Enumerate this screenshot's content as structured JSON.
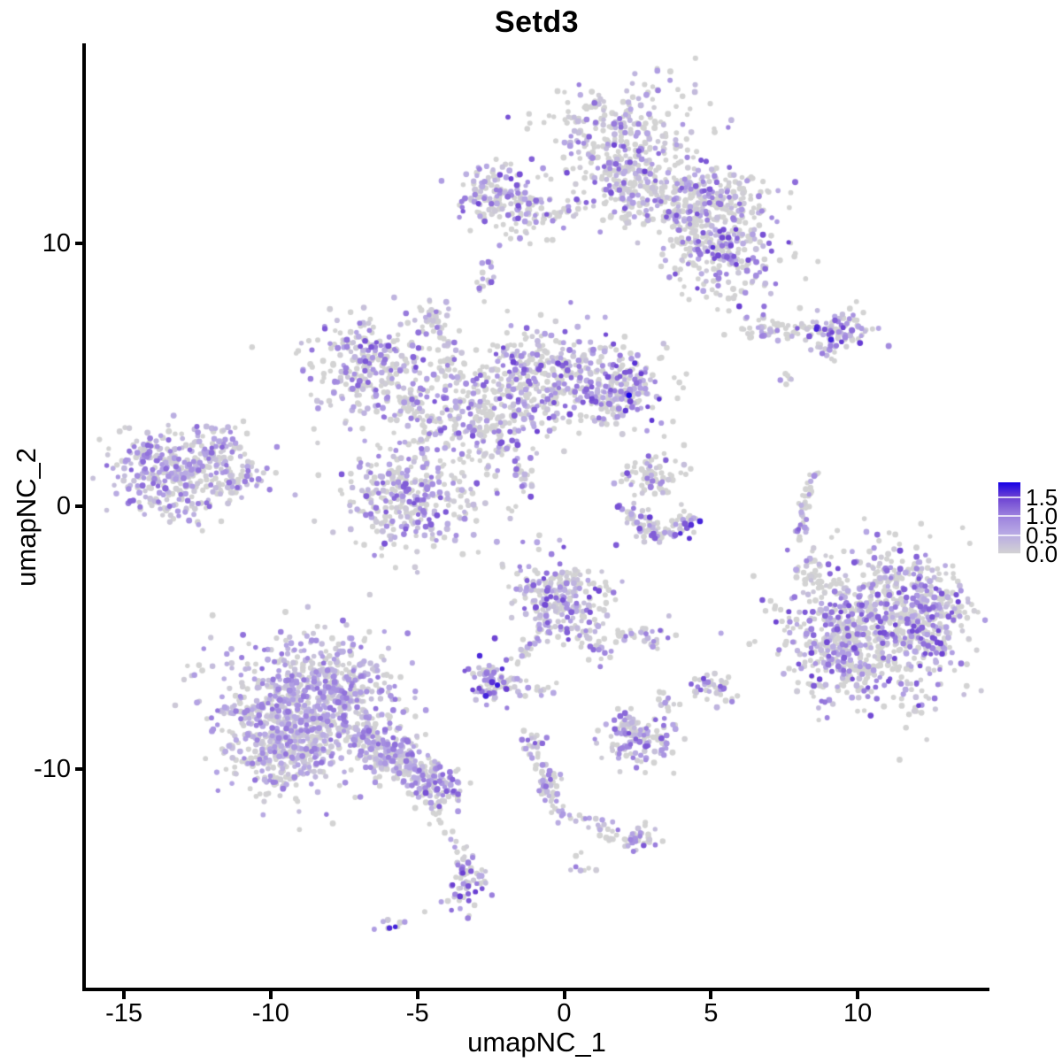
{
  "title": "Setd3",
  "axes": {
    "x": {
      "label": "umapNC_1",
      "ticks": [
        -15,
        -10,
        -5,
        0,
        5,
        10
      ]
    },
    "y": {
      "label": "umapNC_2",
      "ticks": [
        10,
        0,
        -10
      ]
    }
  },
  "legend": {
    "tick_values": [
      1.5,
      1.0,
      0.5,
      0.0
    ],
    "tick_labels": [
      "1.5",
      "1.0",
      "0.5",
      "0.0"
    ],
    "max_value": 1.9
  },
  "colors": {
    "background": "#ffffff",
    "axis": "#000000",
    "text": "#000000",
    "grey_low": "#d3d3d3",
    "blue_high": "#1500e6"
  },
  "chart_data": {
    "type": "scatter",
    "title": "Setd3",
    "xlabel": "umapNC_1",
    "ylabel": "umapNC_2",
    "xlim": [
      -16.4,
      14.5
    ],
    "ylim": [
      -18.4,
      17.7
    ],
    "grid": false,
    "legend_position": "right",
    "point_radius_px": 3.0,
    "n_points_approx": 6800,
    "colorscale": {
      "domain": [
        0,
        1.9
      ],
      "stops": [
        [
          0.0,
          "#d3d3d3"
        ],
        [
          0.3,
          "#b6a7e4"
        ],
        [
          0.55,
          "#9a7edd"
        ],
        [
          0.8,
          "#6a3fd2"
        ],
        [
          1.0,
          "#1500e6"
        ]
      ]
    },
    "clusters": [
      {
        "type": "blob",
        "x": 2.0,
        "y": 14.0,
        "sx": 1.35,
        "sy": 1.05,
        "n": 320,
        "grey": 0.45,
        "emax": 1.5
      },
      {
        "type": "blob",
        "x": 1.9,
        "y": 12.4,
        "sx": 0.55,
        "sy": 0.6,
        "n": 70,
        "grey": 0.5,
        "emax": 1.4
      },
      {
        "type": "blob",
        "x": 3.5,
        "y": 11.6,
        "sx": 1.05,
        "sy": 0.6,
        "n": 160,
        "grey": 0.5,
        "emax": 1.4
      },
      {
        "type": "blob",
        "x": 5.3,
        "y": 11.8,
        "sx": 0.9,
        "sy": 0.6,
        "n": 140,
        "grey": 0.45,
        "emax": 1.5
      },
      {
        "type": "blob",
        "x": 5.4,
        "y": 9.7,
        "sx": 0.95,
        "sy": 0.85,
        "n": 240,
        "grey": 0.4,
        "emax": 1.6
      },
      {
        "type": "blob",
        "x": 4.4,
        "y": 10.7,
        "sx": 0.45,
        "sy": 0.5,
        "n": 40,
        "grey": 0.5,
        "emax": 1.3
      },
      {
        "type": "blob",
        "x": -2.7,
        "y": 11.9,
        "sx": 0.55,
        "sy": 0.6,
        "n": 90,
        "grey": 0.4,
        "emax": 1.5
      },
      {
        "type": "blob",
        "x": -1.4,
        "y": 11.2,
        "sx": 0.65,
        "sy": 0.55,
        "n": 90,
        "grey": 0.45,
        "emax": 1.4
      },
      {
        "type": "strand",
        "x1": -0.6,
        "y1": 11.0,
        "x2": 0.3,
        "y2": 11.3,
        "w": 0.15,
        "n": 15,
        "grey": 0.6,
        "emax": 1.2
      },
      {
        "type": "blob",
        "x": -2.75,
        "y": 8.7,
        "sx": 0.2,
        "sy": 0.45,
        "n": 16,
        "grey": 0.35,
        "emax": 1.3
      },
      {
        "type": "blob",
        "x": 7.4,
        "y": 6.7,
        "sx": 0.85,
        "sy": 0.25,
        "n": 55,
        "grey": 0.6,
        "emax": 1.3
      },
      {
        "type": "blob",
        "x": 9.4,
        "y": 6.6,
        "sx": 0.6,
        "sy": 0.4,
        "n": 95,
        "grey": 0.3,
        "emax": 1.7
      },
      {
        "type": "strand",
        "x1": 8.6,
        "y1": 6.2,
        "x2": 9.2,
        "y2": 5.6,
        "w": 0.12,
        "n": 12,
        "grey": 0.5,
        "emax": 1.3
      },
      {
        "type": "blob",
        "x": 7.7,
        "y": 4.85,
        "sx": 0.22,
        "sy": 0.18,
        "n": 6,
        "grey": 0.5,
        "emax": 1.2
      },
      {
        "type": "blob",
        "x": -6.4,
        "y": 5.2,
        "sx": 1.15,
        "sy": 0.95,
        "n": 300,
        "grey": 0.42,
        "emax": 1.4
      },
      {
        "type": "blob",
        "x": -4.5,
        "y": 7.2,
        "sx": 0.3,
        "sy": 0.45,
        "n": 35,
        "grey": 0.3,
        "emax": 1.4
      },
      {
        "type": "strand",
        "x1": -4.2,
        "y1": 7.0,
        "x2": -3.8,
        "y2": 4.9,
        "w": 0.12,
        "n": 20,
        "grey": 0.4,
        "emax": 1.3
      },
      {
        "type": "blob",
        "x": -3.2,
        "y": 3.3,
        "sx": 1.05,
        "sy": 1.0,
        "n": 220,
        "grey": 0.5,
        "emax": 1.4
      },
      {
        "type": "blob",
        "x": -0.4,
        "y": 4.9,
        "sx": 1.55,
        "sy": 0.95,
        "n": 420,
        "grey": 0.45,
        "emax": 1.5
      },
      {
        "type": "blob",
        "x": 2.0,
        "y": 4.4,
        "sx": 0.65,
        "sy": 0.6,
        "n": 130,
        "grey": 0.4,
        "emax": 1.6
      },
      {
        "type": "blob",
        "x": 2.2,
        "y": 4.2,
        "sx": 0.02,
        "sy": 0.02,
        "n": 1,
        "e": 1.9
      },
      {
        "type": "blob",
        "x": -5.2,
        "y": 0.4,
        "sx": 1.2,
        "sy": 1.05,
        "n": 330,
        "grey": 0.4,
        "emax": 1.4
      },
      {
        "type": "strand",
        "x1": -2.4,
        "y1": 2.9,
        "x2": -0.9,
        "y2": 0.3,
        "w": 0.18,
        "n": 40,
        "grey": 0.45,
        "emax": 1.4
      },
      {
        "type": "strand",
        "x1": -5.6,
        "y1": 4.0,
        "x2": -4.4,
        "y2": 3.2,
        "w": 0.2,
        "n": 25,
        "grey": 0.5,
        "emax": 1.3
      },
      {
        "type": "blob",
        "x": -13.2,
        "y": 1.4,
        "sx": 1.15,
        "sy": 0.8,
        "n": 340,
        "grey": 0.25,
        "emax": 1.25
      },
      {
        "type": "blob",
        "x": -11.7,
        "y": 2.5,
        "sx": 0.4,
        "sy": 0.35,
        "n": 30,
        "grey": 0.3,
        "emax": 1.2
      },
      {
        "type": "blob",
        "x": -10.9,
        "y": 1.1,
        "sx": 0.5,
        "sy": 0.3,
        "n": 40,
        "grey": 0.35,
        "emax": 1.2
      },
      {
        "type": "blob",
        "x": -13.6,
        "y": -0.1,
        "sx": 0.5,
        "sy": 0.3,
        "n": 30,
        "grey": 0.3,
        "emax": 1.2
      },
      {
        "type": "blob",
        "x": -10.6,
        "y": 6.05,
        "sx": 0.02,
        "sy": 0.02,
        "n": 1,
        "e": 0
      },
      {
        "type": "blob",
        "x": 2.8,
        "y": 1.1,
        "sx": 0.6,
        "sy": 0.55,
        "n": 75,
        "grey": 0.55,
        "emax": 1.4
      },
      {
        "type": "strand",
        "x1": 2.1,
        "y1": -0.2,
        "x2": 3.2,
        "y2": -1.15,
        "w": 0.2,
        "n": 45,
        "grey": 0.35,
        "emax": 1.7
      },
      {
        "type": "strand",
        "x1": 3.2,
        "y1": -1.15,
        "x2": 4.5,
        "y2": -0.4,
        "w": 0.2,
        "n": 45,
        "grey": 0.35,
        "emax": 1.7
      },
      {
        "type": "strand",
        "x1": 8.0,
        "y1": -1.2,
        "x2": 8.15,
        "y2": 0.1,
        "w": 0.1,
        "n": 20,
        "grey": 0.5,
        "emax": 1.3
      },
      {
        "type": "strand",
        "x1": 8.15,
        "y1": 0.1,
        "x2": 8.6,
        "y2": 1.3,
        "w": 0.1,
        "n": 20,
        "grey": 0.5,
        "emax": 1.3
      },
      {
        "type": "blob",
        "x": 10.6,
        "y": -4.6,
        "sx": 1.6,
        "sy": 1.45,
        "n": 750,
        "grey": 0.45,
        "emax": 1.5
      },
      {
        "type": "blob",
        "x": 12.2,
        "y": -4.0,
        "sx": 0.7,
        "sy": 0.9,
        "n": 150,
        "grey": 0.45,
        "emax": 1.5
      },
      {
        "type": "blob",
        "x": 9.3,
        "y": -5.8,
        "sx": 0.7,
        "sy": 0.8,
        "n": 120,
        "grey": 0.4,
        "emax": 1.5
      },
      {
        "type": "strand",
        "x1": 8.1,
        "y1": -2.0,
        "x2": 9.0,
        "y2": -3.0,
        "w": 0.3,
        "n": 25,
        "grey": 0.75,
        "emax": 1.2
      },
      {
        "type": "blob",
        "x": -0.3,
        "y": -3.4,
        "sx": 0.8,
        "sy": 0.75,
        "n": 240,
        "grey": 0.35,
        "emax": 1.5
      },
      {
        "type": "strand",
        "x1": 0.5,
        "y1": -4.5,
        "x2": 1.4,
        "y2": -5.8,
        "w": 0.18,
        "n": 30,
        "grey": 0.5,
        "emax": 1.3
      },
      {
        "type": "strand",
        "x1": -0.9,
        "y1": -4.9,
        "x2": -1.7,
        "y2": -6.1,
        "w": 0.15,
        "n": 22,
        "grey": 0.45,
        "emax": 1.3
      },
      {
        "type": "blob",
        "x": -2.4,
        "y": -6.7,
        "sx": 0.5,
        "sy": 0.35,
        "n": 75,
        "grey": 0.15,
        "emax": 1.75
      },
      {
        "type": "blob",
        "x": -0.9,
        "y": -7.0,
        "sx": 0.3,
        "sy": 0.25,
        "n": 12,
        "grey": 0.6,
        "emax": 1.2
      },
      {
        "type": "blob",
        "x": 2.6,
        "y": -4.85,
        "sx": 0.55,
        "sy": 0.25,
        "n": 35,
        "grey": 0.45,
        "emax": 1.4
      },
      {
        "type": "blob",
        "x": 3.4,
        "y": -7.3,
        "sx": 0.22,
        "sy": 0.28,
        "n": 12,
        "grey": 0.5,
        "emax": 1.3
      },
      {
        "type": "blob",
        "x": 5.05,
        "y": -6.9,
        "sx": 0.4,
        "sy": 0.35,
        "n": 40,
        "grey": 0.4,
        "emax": 1.5
      },
      {
        "type": "blob",
        "x": -8.5,
        "y": -7.4,
        "sx": 1.55,
        "sy": 1.25,
        "n": 800,
        "grey": 0.22,
        "emax": 1.15
      },
      {
        "type": "blob",
        "x": -9.6,
        "y": -9.2,
        "sx": 1.0,
        "sy": 0.85,
        "n": 280,
        "grey": 0.22,
        "emax": 1.15
      },
      {
        "type": "strand",
        "x1": -6.8,
        "y1": -8.8,
        "x2": -4.6,
        "y2": -10.4,
        "w": 0.42,
        "n": 260,
        "grey": 0.3,
        "emax": 1.2
      },
      {
        "type": "blob",
        "x": -4.3,
        "y": -10.7,
        "sx": 0.45,
        "sy": 0.4,
        "n": 70,
        "grey": 0.3,
        "emax": 1.4
      },
      {
        "type": "strand",
        "x1": -4.5,
        "y1": -11.4,
        "x2": -4.3,
        "y2": -12.2,
        "w": 0.15,
        "n": 10,
        "grey": 0.6,
        "emax": 1.2
      },
      {
        "type": "blob",
        "x": 2.5,
        "y": -8.9,
        "sx": 0.6,
        "sy": 0.5,
        "n": 120,
        "grey": 0.35,
        "emax": 1.4
      },
      {
        "type": "strand",
        "x1": 1.9,
        "y1": -8.2,
        "x2": 2.4,
        "y2": -8.7,
        "w": 0.15,
        "n": 15,
        "grey": 0.4,
        "emax": 1.3
      },
      {
        "type": "strand",
        "x1": -1.15,
        "y1": -8.95,
        "x2": -0.3,
        "y2": -11.6,
        "w": 0.17,
        "n": 45,
        "grey": 0.4,
        "emax": 1.5
      },
      {
        "type": "blob",
        "x": -1.1,
        "y": -9.0,
        "sx": 0.25,
        "sy": 0.25,
        "n": 15,
        "grey": 0.4,
        "emax": 1.4
      },
      {
        "type": "blob",
        "x": -0.55,
        "y": -10.35,
        "sx": 0.2,
        "sy": 0.3,
        "n": 15,
        "grey": 0.4,
        "emax": 1.4
      },
      {
        "type": "strand",
        "x1": -0.3,
        "y1": -11.6,
        "x2": 2.4,
        "y2": -12.6,
        "w": 0.2,
        "n": 40,
        "grey": 0.45,
        "emax": 1.3
      },
      {
        "type": "blob",
        "x": 2.55,
        "y": -12.55,
        "sx": 0.3,
        "sy": 0.3,
        "n": 30,
        "grey": 0.35,
        "emax": 1.5
      },
      {
        "type": "blob",
        "x": 0.6,
        "y": -13.7,
        "sx": 0.25,
        "sy": 0.2,
        "n": 8,
        "grey": 0.4,
        "emax": 1.3
      },
      {
        "type": "strand",
        "x1": -3.85,
        "y1": -12.3,
        "x2": -3.55,
        "y2": -13.3,
        "w": 0.1,
        "n": 8,
        "grey": 0.5,
        "emax": 1.2
      },
      {
        "type": "blob",
        "x": -3.35,
        "y": -14.3,
        "sx": 0.32,
        "sy": 0.62,
        "n": 70,
        "grey": 0.3,
        "emax": 1.6
      },
      {
        "type": "blob",
        "x": -4.75,
        "y": -15.4,
        "sx": 0.02,
        "sy": 0.02,
        "n": 1,
        "e": 0
      },
      {
        "type": "blob",
        "x": -5.95,
        "y": -15.9,
        "sx": 0.22,
        "sy": 0.15,
        "n": 9,
        "grey": 0.15,
        "emax": 1.8
      }
    ]
  }
}
